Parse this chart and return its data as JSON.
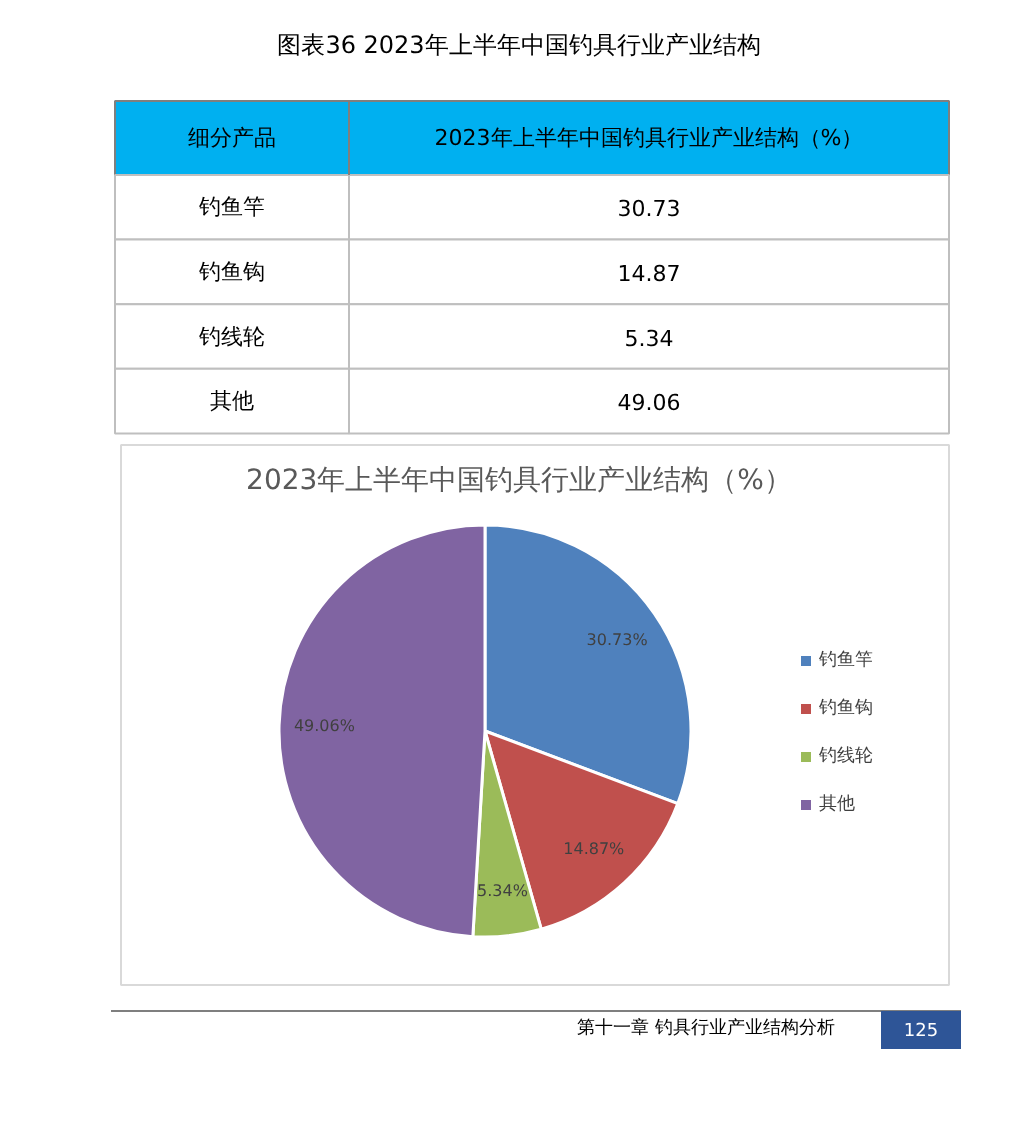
{
  "chart_data": {
    "type": "pie",
    "title": "图表36 2023年上半年中国钓具行业产业结构",
    "subtitle": "2023年上半年中国钓具行业产业结构（%）",
    "categories": [
      "钓鱼竿",
      "钓鱼钩",
      "钓线轮",
      "其他"
    ],
    "values": [
      30.73,
      14.87,
      5.34,
      49.06
    ],
    "colors": [
      "#4f81bd",
      "#c0504d",
      "#9bbb59",
      "#8064a2"
    ],
    "value_labels": [
      "30.73%",
      "14.87%",
      "5.34%",
      "49.06%"
    ],
    "legend": "right",
    "annotations": [
      "细分产品",
      "2023年上半年中国钓具行业产业结构（%）",
      "第十一章 钓具行业产业结构分析",
      "125",
      "30.73",
      "14.87",
      "5.34",
      "49.06"
    ]
  }
}
